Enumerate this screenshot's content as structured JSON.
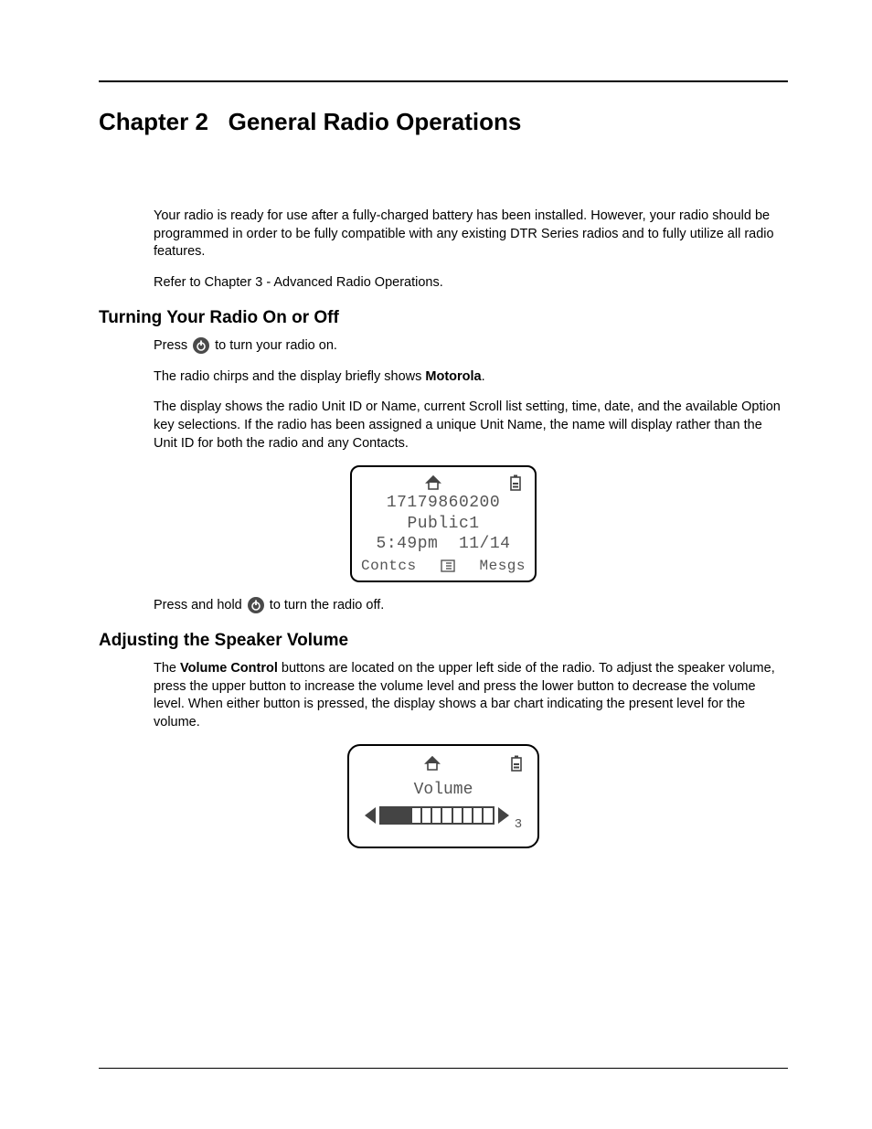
{
  "chapter": {
    "label": "Chapter 2",
    "title": "General Radio Operations"
  },
  "intro": {
    "p1": "Your radio is ready for use after a fully-charged battery has been installed. However, your radio should be programmed in order to be fully compatible with any existing DTR Series radios and to fully utilize all radio features.",
    "p2": "Refer to Chapter 3 - Advanced Radio Operations."
  },
  "section1": {
    "heading": "Turning Your Radio On or Off",
    "press_prefix": "Press ",
    "press_suffix": " to turn your radio on.",
    "chirp_prefix": "The radio chirps and the display briefly shows ",
    "chirp_bold": "Motorola",
    "chirp_suffix": ".",
    "display_info": "The display shows the radio Unit ID or Name, current Scroll list setting, time, date, and the available Option key selections. If the radio has been assigned a unique Unit Name, the name will display rather than the Unit ID for both the radio and any Contacts.",
    "hold_prefix": "Press and hold ",
    "hold_suffix": " to turn the radio off."
  },
  "lcd1": {
    "unit_id": "17179860200",
    "group": "Public1",
    "time": "5:49pm",
    "date": "11/14",
    "soft_left": "Contcs",
    "soft_right": "Mesgs",
    "icon_home": "home-icon",
    "icon_battery": "battery-icon",
    "icon_list": "list-icon",
    "border_color": "#000000",
    "text_color": "#555555",
    "background_color": "#ffffff"
  },
  "section2": {
    "heading": "Adjusting the Speaker Volume",
    "p_prefix": "The ",
    "p_bold": "Volume Control",
    "p_suffix": " buttons are located on the upper left side of the radio. To adjust the speaker volume, press the upper button to increase the volume level and press the lower button to decrease the volume level. When either button is pressed, the display shows a bar chart indicating the present level for the volume."
  },
  "lcd2": {
    "title": "Volume",
    "level": 3,
    "segments": 11,
    "level_label": "3",
    "icon_home": "home-icon",
    "icon_battery": "battery-icon",
    "border_color": "#000000",
    "bar_color": "#444444",
    "text_color": "#555555",
    "background_color": "#ffffff"
  },
  "icons": {
    "power": "power-icon"
  },
  "colors": {
    "text": "#000000",
    "rule": "#000000",
    "icon_bg": "#4a4a4a"
  },
  "typography": {
    "chapter_fontsize": 26,
    "section_fontsize": 19,
    "body_fontsize": 14.5,
    "lcd_font": "Courier New"
  }
}
